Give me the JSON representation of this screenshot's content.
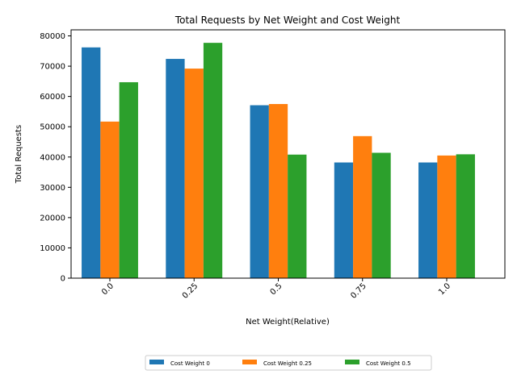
{
  "chart_data": {
    "type": "bar",
    "title": "Total Requests by Net Weight and Cost Weight",
    "xlabel": "Net Weight(Relative)",
    "ylabel": "Total Requests",
    "categories": [
      "0.0",
      "0.25",
      "0.5",
      "0.75",
      "1.0"
    ],
    "ylim": [
      0,
      82000
    ],
    "yticks": [
      0,
      10000,
      20000,
      30000,
      40000,
      50000,
      60000,
      70000,
      80000
    ],
    "grid": false,
    "legend_position": "bottom-center",
    "series": [
      {
        "name": "Cost Weight 0",
        "color": "#1f77b4",
        "values": [
          76200,
          72400,
          57100,
          38200,
          38200
        ]
      },
      {
        "name": "Cost Weight 0.25",
        "color": "#ff7f0e",
        "values": [
          51700,
          69200,
          57500,
          46900,
          40500
        ]
      },
      {
        "name": "Cost Weight 0.5",
        "color": "#2ca02c",
        "values": [
          64700,
          77700,
          40800,
          41400,
          40900
        ]
      }
    ]
  }
}
